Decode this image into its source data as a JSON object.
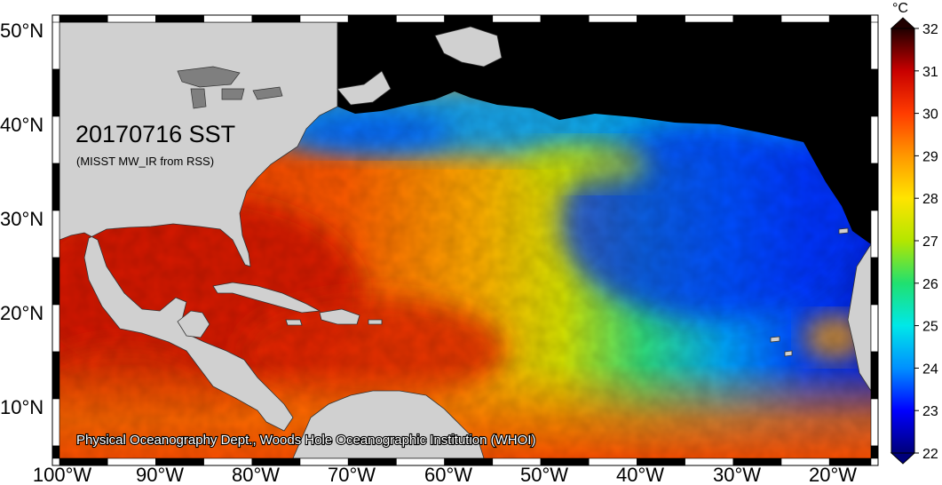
{
  "map": {
    "title": "20170716 SST",
    "subtitle": "(MISST MW_IR from RSS)",
    "credit": "Physical Oceanography Dept., Woods Hole Oceanographic Institution (WHOI)",
    "lon_labels": [
      "100°W",
      "90°W",
      "80°W",
      "70°W",
      "60°W",
      "50°W",
      "40°W",
      "30°W",
      "20°W"
    ],
    "lat_labels": [
      "50°N",
      "40°N",
      "30°N",
      "20°N",
      "10°N"
    ],
    "colors": {
      "land": "#d0d0d0",
      "no_data": "#000000"
    }
  },
  "colorbar": {
    "unit": "°C",
    "min": 22,
    "max": 32,
    "tick_labels": [
      "32",
      "31",
      "30",
      "29",
      "28",
      "27",
      "26",
      "25",
      "24",
      "23",
      "22"
    ],
    "stops": [
      "#00007a",
      "#0000ff",
      "#0090ff",
      "#00e8e8",
      "#20e070",
      "#b4e600",
      "#ffe400",
      "#ff9800",
      "#ff3c00",
      "#c80000",
      "#200000"
    ]
  }
}
